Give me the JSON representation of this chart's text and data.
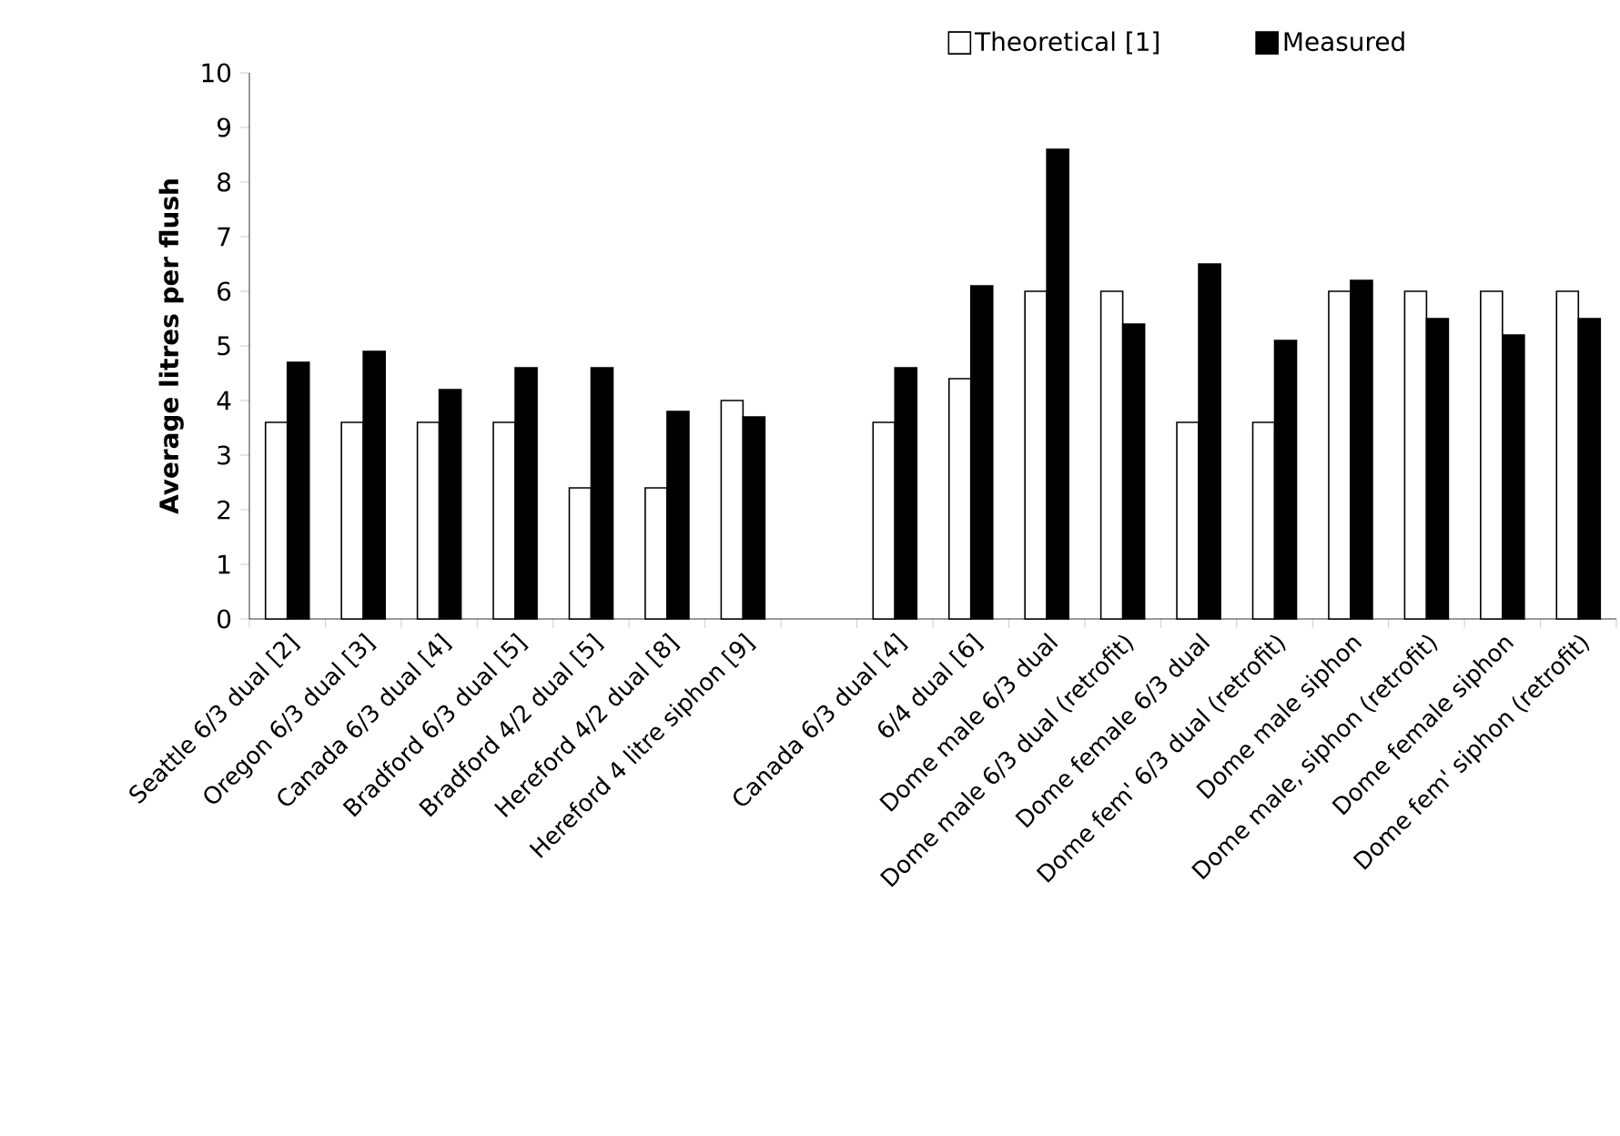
{
  "chart_data": {
    "type": "bar",
    "ylabel": "Average litres per flush",
    "categories": [
      "Seattle 6/3 dual [2]",
      "Oregon 6/3 dual [3]",
      "Canada 6/3 dual [4]",
      "Bradford 6/3 dual [5]",
      "Bradford 4/2 dual [5]",
      "Hereford 4/2 dual  [8]",
      "Hereford 4 litre siphon [9]",
      null,
      "Canada 6/3 dual [4]",
      "6/4 dual [6]",
      "Dome male 6/3 dual",
      "Dome male 6/3 dual (retrofit)",
      "Dome female  6/3 dual",
      "Dome fem'  6/3 dual (retrofit)",
      "Dome male siphon",
      "Dome male, siphon (retrofit)",
      "Dome female siphon",
      "Dome fem' siphon (retrofit)"
    ],
    "series": [
      {
        "name": "Theoretical [1]",
        "color": "#ffffff",
        "values": [
          3.6,
          3.6,
          3.6,
          3.6,
          2.4,
          2.4,
          4.0,
          null,
          3.6,
          4.4,
          6,
          6,
          3.6,
          3.6,
          6,
          6,
          6,
          6
        ]
      },
      {
        "name": "Measured",
        "color": "#000000",
        "values": [
          4.7,
          4.9,
          4.2,
          4.6,
          4.6,
          3.8,
          3.7,
          null,
          4.6,
          6.1,
          8.6,
          5.4,
          6.5,
          5.1,
          6.2,
          5.5,
          5.2,
          5.5
        ]
      }
    ],
    "ylim": [
      0,
      10
    ],
    "yticks": [
      0,
      1,
      2,
      3,
      4,
      5,
      6,
      7,
      8,
      9,
      10
    ],
    "legend": "top",
    "grid": false
  }
}
